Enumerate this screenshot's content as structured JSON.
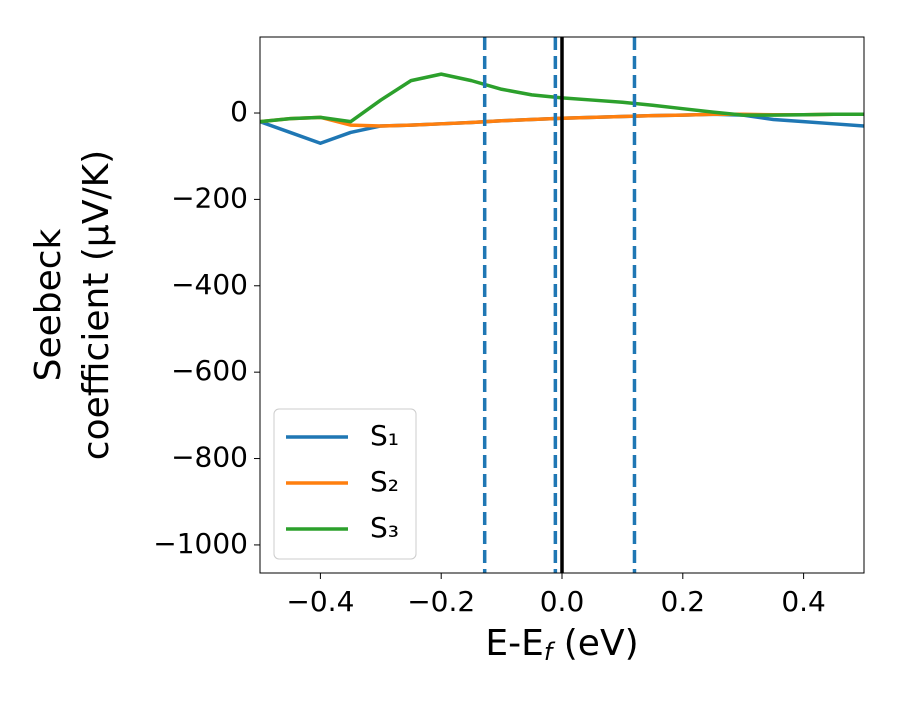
{
  "chart_data": {
    "type": "line",
    "xlabel": [
      "E-E",
      "f",
      " (eV)"
    ],
    "ylabel": [
      "Seebeck",
      "coefficient  (μV/K)"
    ],
    "x": [
      -0.5,
      -0.45,
      -0.4,
      -0.35,
      -0.3,
      -0.25,
      -0.2,
      -0.15,
      -0.1,
      -0.05,
      0,
      0.05,
      0.1,
      0.15,
      0.2,
      0.25,
      0.3,
      0.35,
      0.4,
      0.45,
      0.5
    ],
    "series": [
      {
        "name": "S₁",
        "color": "#1f77b4",
        "values": [
          -20,
          -45,
          -70,
          -45,
          -30,
          -28,
          -25,
          -22,
          -18,
          -15,
          -12,
          -10,
          -8,
          -6,
          -5,
          -3,
          -5,
          -15,
          -20,
          -25,
          -30
        ]
      },
      {
        "name": "S₂",
        "color": "#ff7f0e",
        "values": [
          -20,
          -13,
          -10,
          -28,
          -30,
          -28,
          -25,
          -22,
          -18,
          -15,
          -12,
          -10,
          -8,
          -6,
          -5,
          -3,
          -3,
          -4,
          -4,
          -3,
          -3
        ]
      },
      {
        "name": "S₃",
        "color": "#2ca02c",
        "values": [
          -20,
          -13,
          -10,
          -20,
          30,
          75,
          90,
          75,
          55,
          42,
          35,
          30,
          25,
          18,
          10,
          2,
          -5,
          -5,
          -4,
          -3,
          -3
        ]
      }
    ],
    "dashed_vlines": [
      -0.128,
      -0.011,
      0.12
    ],
    "dashed_color": "#1f77b4",
    "solid_vlines": [
      0
    ],
    "solid_color": "#000000",
    "xlim": [
      -0.5,
      0.5
    ],
    "ylim": [
      -1065,
      176
    ],
    "xticks": [
      {
        "value": -0.4,
        "label": "−0.4"
      },
      {
        "value": -0.2,
        "label": "−0.2"
      },
      {
        "value": 0,
        "label": "0.0"
      },
      {
        "value": 0.2,
        "label": "0.2"
      },
      {
        "value": 0.4,
        "label": "0.4"
      }
    ],
    "yticks": [
      0,
      {
        "value": -200,
        "label": "−200"
      },
      {
        "value": -400,
        "label": "−400"
      },
      {
        "value": -600,
        "label": "−600"
      },
      {
        "value": -800,
        "label": "−800"
      },
      {
        "value": -1000,
        "label": "−1000"
      }
    ],
    "legend": "lower left"
  }
}
